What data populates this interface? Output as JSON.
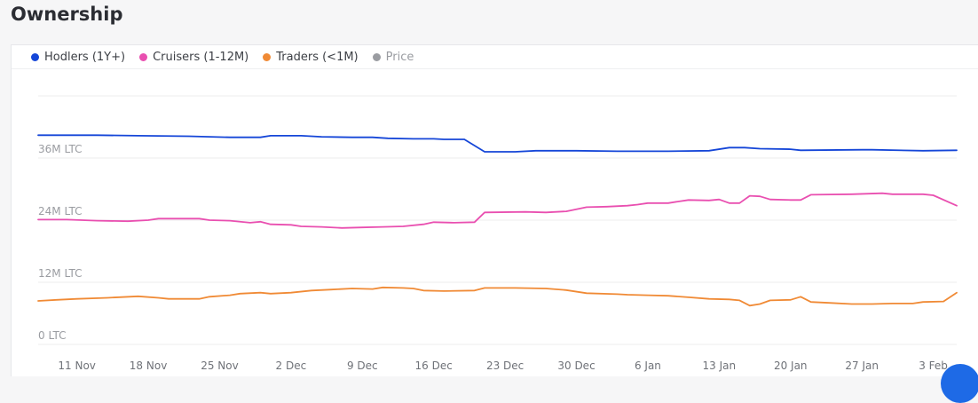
{
  "header": {
    "title": "Ownership"
  },
  "legend": [
    {
      "label": "Hodlers (1Y+)",
      "color": "#1546d8"
    },
    {
      "label": "Cruisers (1-12M)",
      "color": "#e94fb0"
    },
    {
      "label": "Traders (<1M)",
      "color": "#f08a35"
    },
    {
      "label": "Price",
      "color": "#9a9ca1"
    }
  ],
  "chart_data": {
    "type": "line",
    "unit": "M LTC",
    "y_ticks": [
      "0 LTC",
      "12M LTC",
      "24M LTC",
      "36M LTC"
    ],
    "ylim": [
      0,
      48
    ],
    "x_ticks": [
      "11 Nov",
      "18 Nov",
      "25 Nov",
      "2 Dec",
      "9 Dec",
      "16 Dec",
      "23 Dec",
      "30 Dec",
      "6 Jan",
      "13 Jan",
      "20 Jan",
      "27 Jan",
      "3 Feb"
    ],
    "x_tick_days": [
      7,
      14,
      21,
      28,
      35,
      42,
      49,
      56,
      63,
      70,
      77,
      84,
      91
    ],
    "xlim_days": [
      3.2,
      93.3
    ],
    "grid": true,
    "series": [
      {
        "name": "Hodlers (1Y+)",
        "color": "#1546d8",
        "points": [
          [
            3.2,
            40.4
          ],
          [
            9,
            40.4
          ],
          [
            13,
            40.3
          ],
          [
            18,
            40.2
          ],
          [
            22,
            40.0
          ],
          [
            25,
            40.0
          ],
          [
            26,
            40.3
          ],
          [
            29,
            40.3
          ],
          [
            31,
            40.1
          ],
          [
            34,
            40.0
          ],
          [
            36,
            40.0
          ],
          [
            37.5,
            39.8
          ],
          [
            40,
            39.7
          ],
          [
            42,
            39.7
          ],
          [
            43,
            39.6
          ],
          [
            45,
            39.6
          ],
          [
            47,
            37.2
          ],
          [
            50,
            37.2
          ],
          [
            52,
            37.4
          ],
          [
            56,
            37.4
          ],
          [
            60,
            37.3
          ],
          [
            65,
            37.3
          ],
          [
            69,
            37.4
          ],
          [
            71,
            38.0
          ],
          [
            72.5,
            38.0
          ],
          [
            74,
            37.8
          ],
          [
            77,
            37.7
          ],
          [
            78,
            37.5
          ],
          [
            84,
            37.6
          ],
          [
            85,
            37.6
          ],
          [
            90,
            37.4
          ],
          [
            93.3,
            37.5
          ]
        ]
      },
      {
        "name": "Cruisers (1-12M)",
        "color": "#e94fb0",
        "points": [
          [
            3.2,
            24.1
          ],
          [
            6,
            24.1
          ],
          [
            9,
            23.9
          ],
          [
            12,
            23.8
          ],
          [
            14,
            24.0
          ],
          [
            15,
            24.3
          ],
          [
            19,
            24.3
          ],
          [
            20,
            24.0
          ],
          [
            22,
            23.9
          ],
          [
            24,
            23.5
          ],
          [
            25,
            23.7
          ],
          [
            26,
            23.2
          ],
          [
            28,
            23.1
          ],
          [
            29,
            22.8
          ],
          [
            31,
            22.7
          ],
          [
            33,
            22.5
          ],
          [
            35,
            22.6
          ],
          [
            37,
            22.7
          ],
          [
            39,
            22.8
          ],
          [
            41,
            23.2
          ],
          [
            42,
            23.6
          ],
          [
            44,
            23.5
          ],
          [
            46,
            23.6
          ],
          [
            47,
            25.5
          ],
          [
            51,
            25.6
          ],
          [
            53,
            25.5
          ],
          [
            55,
            25.7
          ],
          [
            57,
            26.5
          ],
          [
            59,
            26.6
          ],
          [
            61,
            26.8
          ],
          [
            62,
            27.0
          ],
          [
            63,
            27.3
          ],
          [
            65,
            27.3
          ],
          [
            66,
            27.6
          ],
          [
            67,
            27.9
          ],
          [
            69,
            27.8
          ],
          [
            70,
            28.0
          ],
          [
            71,
            27.3
          ],
          [
            72,
            27.3
          ],
          [
            73,
            28.7
          ],
          [
            74,
            28.6
          ],
          [
            75,
            28.0
          ],
          [
            77,
            27.9
          ],
          [
            78,
            27.9
          ],
          [
            79,
            28.9
          ],
          [
            83,
            29.0
          ],
          [
            86,
            29.2
          ],
          [
            87,
            29.0
          ],
          [
            90,
            29.0
          ],
          [
            91,
            28.8
          ],
          [
            93.3,
            26.8
          ]
        ]
      },
      {
        "name": "Traders (<1M)",
        "color": "#f08a35",
        "points": [
          [
            3.2,
            8.4
          ],
          [
            5,
            8.6
          ],
          [
            7,
            8.8
          ],
          [
            10,
            9.0
          ],
          [
            13,
            9.3
          ],
          [
            15,
            9.0
          ],
          [
            16,
            8.8
          ],
          [
            19,
            8.8
          ],
          [
            20,
            9.2
          ],
          [
            22,
            9.5
          ],
          [
            23,
            9.8
          ],
          [
            25,
            10.0
          ],
          [
            26,
            9.8
          ],
          [
            28,
            10.0
          ],
          [
            30,
            10.4
          ],
          [
            32,
            10.6
          ],
          [
            34,
            10.8
          ],
          [
            36,
            10.7
          ],
          [
            37,
            11.0
          ],
          [
            39,
            10.9
          ],
          [
            40,
            10.8
          ],
          [
            41,
            10.4
          ],
          [
            43,
            10.3
          ],
          [
            46,
            10.4
          ],
          [
            47,
            10.9
          ],
          [
            50,
            10.9
          ],
          [
            53,
            10.8
          ],
          [
            55,
            10.5
          ],
          [
            57,
            9.9
          ],
          [
            60,
            9.7
          ],
          [
            61,
            9.6
          ],
          [
            63,
            9.5
          ],
          [
            65,
            9.4
          ],
          [
            67,
            9.1
          ],
          [
            69,
            8.8
          ],
          [
            71,
            8.7
          ],
          [
            72,
            8.5
          ],
          [
            73,
            7.5
          ],
          [
            74,
            7.8
          ],
          [
            75,
            8.5
          ],
          [
            77,
            8.6
          ],
          [
            78,
            9.2
          ],
          [
            79,
            8.2
          ],
          [
            81,
            8.0
          ],
          [
            83,
            7.8
          ],
          [
            85,
            7.8
          ],
          [
            87,
            7.9
          ],
          [
            89,
            7.9
          ],
          [
            90,
            8.2
          ],
          [
            92,
            8.3
          ],
          [
            93.3,
            10.0
          ]
        ]
      }
    ]
  }
}
